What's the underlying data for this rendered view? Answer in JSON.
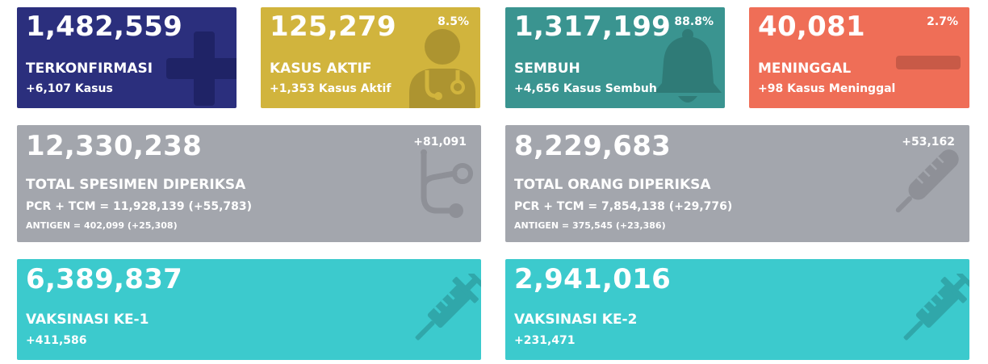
{
  "colors": {
    "confirmed": "#2b2f7d",
    "active": "#d1b43d",
    "recovered": "#3a9490",
    "deaths": "#ef6e57",
    "tests": "#a3a6ad",
    "vaccine": "#3ccacd"
  },
  "confirmed": {
    "value": "1,482,559",
    "label": "TERKONFIRMASI",
    "delta": "+6,107 Kasus",
    "icon": "plus-icon"
  },
  "active": {
    "value": "125,279",
    "pct": "8.5%",
    "label": "KASUS AKTIF",
    "delta": "+1,353 Kasus Aktif",
    "icon": "doctor-icon"
  },
  "recovered": {
    "value": "1,317,199",
    "pct": "88.8%",
    "label": "SEMBUH",
    "delta": "+4,656 Kasus Sembuh",
    "icon": "bell-icon"
  },
  "deaths": {
    "value": "40,081",
    "pct": "2.7%",
    "label": "MENINGGAL",
    "delta": "+98 Kasus Meninggal",
    "icon": "minus-icon"
  },
  "specimens": {
    "value": "12,330,238",
    "delta": "+81,091",
    "label": "TOTAL SPESIMEN DIPERIKSA",
    "pcr": "PCR + TCM = 11,928,139 (+55,783)",
    "antigen": "ANTIGEN = 402,099 (+25,308)",
    "icon": "stethoscope-icon"
  },
  "people": {
    "value": "8,229,683",
    "delta": "+53,162",
    "label": "TOTAL ORANG DIPERIKSA",
    "pcr": "PCR + TCM = 7,854,138 (+29,776)",
    "antigen": "ANTIGEN = 375,545 (+23,386)",
    "icon": "thermometer-icon"
  },
  "vaccine1": {
    "value": "6,389,837",
    "label": "VAKSINASI KE-1",
    "delta": "+411,586",
    "icon": "syringe-icon"
  },
  "vaccine2": {
    "value": "2,941,016",
    "label": "VAKSINASI KE-2",
    "delta": "+231,471",
    "icon": "syringe-icon"
  }
}
